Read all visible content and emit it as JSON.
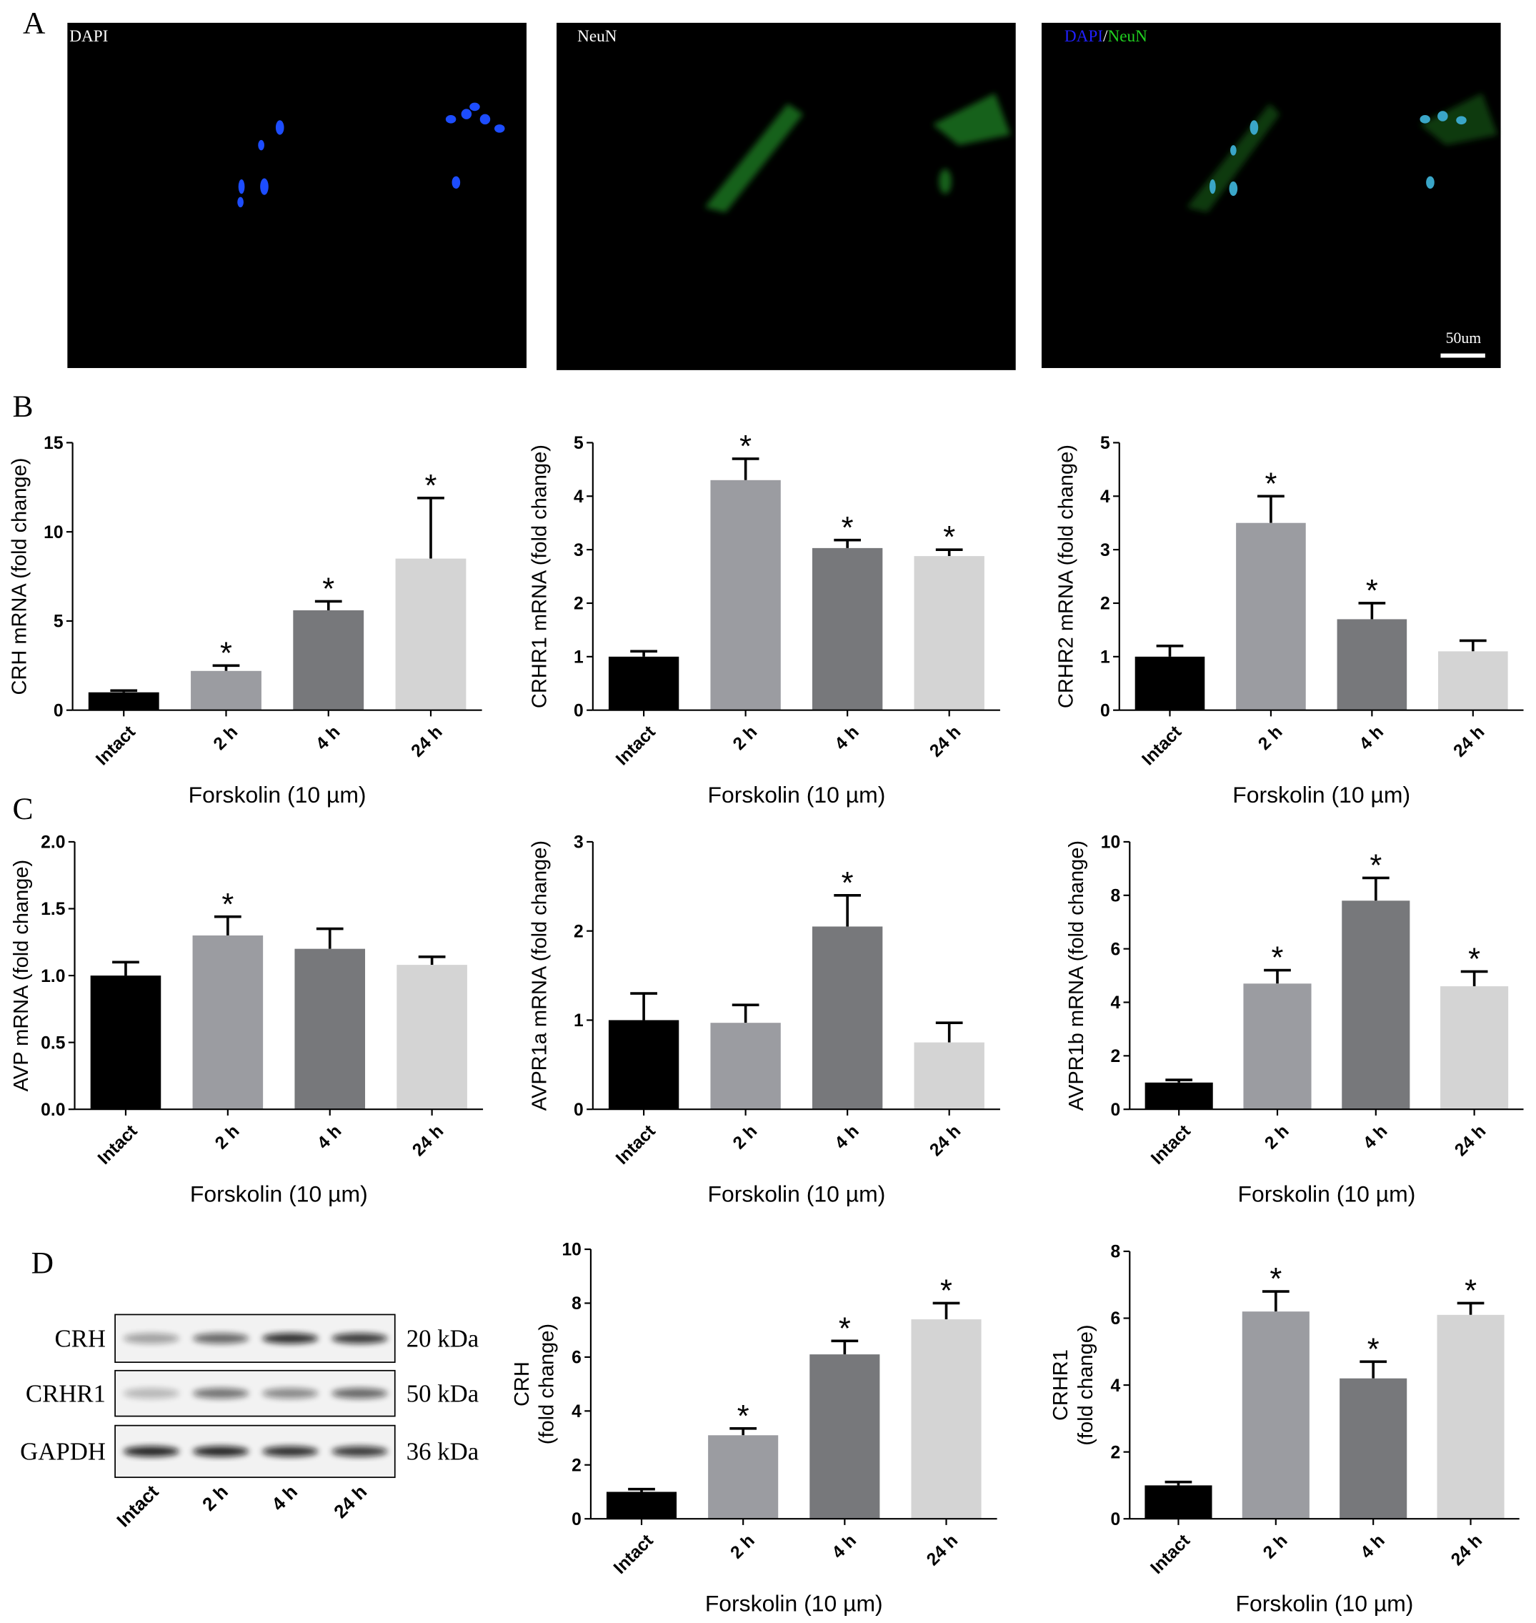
{
  "panel_labels": [
    "A",
    "B",
    "C",
    "D"
  ],
  "microscopy": {
    "panels": [
      {
        "label_parts": [
          {
            "text": "DAPI",
            "color": "#ffffff"
          }
        ]
      },
      {
        "label_parts": [
          {
            "text": "NeuN",
            "color": "#ffffff"
          }
        ]
      },
      {
        "label_parts": [
          {
            "text": "DAPI",
            "color": "#2020ff"
          },
          {
            "text": "/",
            "color": "#ffffff"
          },
          {
            "text": "NeuN",
            "color": "#20d020"
          }
        ]
      }
    ],
    "scale_bar": "50um"
  },
  "western_blot": {
    "rows": [
      {
        "label": "CRH",
        "size": "20 kDa"
      },
      {
        "label": "CRHR1",
        "size": "50 kDa"
      },
      {
        "label": "GAPDH",
        "size": "36 kDa"
      }
    ],
    "lanes": [
      "Intact",
      "2 h",
      "4 h",
      "24 h"
    ]
  },
  "chart_data": [
    {
      "type": "bar",
      "ylabel": "CRH mRNA (fold change)",
      "xlabel": "Forskolin (10 µm)",
      "categories": [
        "Intact",
        "2 h",
        "4 h",
        "24 h"
      ],
      "values": [
        1,
        2.2,
        5.6,
        8.5
      ],
      "errors": [
        0.1,
        0.3,
        0.5,
        3.4
      ],
      "annotations": [
        null,
        "*",
        "*",
        "*"
      ],
      "colors": [
        "#000000",
        "#9b9ca1",
        "#77787b",
        "#d4d4d4"
      ],
      "ylim": [
        0,
        15
      ],
      "yticks": [
        0,
        5,
        10,
        15
      ]
    },
    {
      "type": "bar",
      "ylabel": "CRHR1 mRNA (fold change)",
      "xlabel": "Forskolin (10 µm)",
      "categories": [
        "Intact",
        "2 h",
        "4 h",
        "24 h"
      ],
      "values": [
        1,
        4.3,
        3.03,
        2.88
      ],
      "errors": [
        0.1,
        0.4,
        0.15,
        0.12
      ],
      "annotations": [
        null,
        "*",
        "*",
        "*"
      ],
      "colors": [
        "#000000",
        "#9b9ca1",
        "#77787b",
        "#d4d4d4"
      ],
      "ylim": [
        0,
        5
      ],
      "yticks": [
        0,
        1,
        2,
        3,
        4,
        5
      ]
    },
    {
      "type": "bar",
      "ylabel": "CRHR2 mRNA (fold change)",
      "xlabel": "Forskolin (10 µm)",
      "categories": [
        "Intact",
        "2 h",
        "4 h",
        "24 h"
      ],
      "values": [
        1,
        3.5,
        1.7,
        1.1
      ],
      "errors": [
        0.2,
        0.5,
        0.3,
        0.2
      ],
      "annotations": [
        null,
        "*",
        "*",
        null
      ],
      "colors": [
        "#000000",
        "#9b9ca1",
        "#77787b",
        "#d4d4d4"
      ],
      "ylim": [
        0,
        5
      ],
      "yticks": [
        0,
        1,
        2,
        3,
        4,
        5
      ]
    },
    {
      "type": "bar",
      "ylabel": "AVP mRNA (fold change)",
      "xlabel": "Forskolin (10 µm)",
      "categories": [
        "Intact",
        "2 h",
        "4 h",
        "24 h"
      ],
      "values": [
        1,
        1.3,
        1.2,
        1.08
      ],
      "errors": [
        0.1,
        0.14,
        0.15,
        0.06
      ],
      "annotations": [
        null,
        "*",
        null,
        null
      ],
      "colors": [
        "#000000",
        "#9b9ca1",
        "#77787b",
        "#d4d4d4"
      ],
      "ylim": [
        0,
        2
      ],
      "yticks": [
        {
          "value": 0,
          "label": "0.0"
        },
        0.5,
        {
          "value": 1,
          "label": "1.0"
        },
        1.5,
        {
          "value": 2,
          "label": "2.0"
        }
      ]
    },
    {
      "type": "bar",
      "ylabel": "AVPR1a mRNA (fold change)",
      "xlabel": "Forskolin (10 µm)",
      "categories": [
        "Intact",
        "2 h",
        "4 h",
        "24 h"
      ],
      "values": [
        1,
        0.97,
        2.05,
        0.75
      ],
      "errors": [
        0.3,
        0.2,
        0.35,
        0.22
      ],
      "annotations": [
        null,
        null,
        "*",
        null
      ],
      "colors": [
        "#000000",
        "#9b9ca1",
        "#77787b",
        "#d4d4d4"
      ],
      "ylim": [
        0,
        3
      ],
      "yticks": [
        0,
        1,
        2,
        3
      ]
    },
    {
      "type": "bar",
      "ylabel": "AVPR1b mRNA (fold change)",
      "xlabel": "Forskolin (10 µm)",
      "categories": [
        "Intact",
        "2 h",
        "4 h",
        "24 h"
      ],
      "values": [
        1,
        4.7,
        7.8,
        4.6
      ],
      "errors": [
        0.1,
        0.5,
        0.85,
        0.55
      ],
      "annotations": [
        null,
        "*",
        "*",
        "*"
      ],
      "colors": [
        "#000000",
        "#9b9ca1",
        "#77787b",
        "#d4d4d4"
      ],
      "ylim": [
        0,
        10
      ],
      "yticks": [
        0,
        2,
        4,
        6,
        8,
        10
      ]
    },
    {
      "type": "bar",
      "ylabel": [
        "CRH",
        "(fold change)"
      ],
      "xlabel": "Forskolin (10 µm)",
      "categories": [
        "Intact",
        "2 h",
        "4 h",
        "24 h"
      ],
      "values": [
        1,
        3.1,
        6.1,
        7.4
      ],
      "errors": [
        0.1,
        0.25,
        0.5,
        0.6
      ],
      "annotations": [
        null,
        "*",
        "*",
        "*"
      ],
      "colors": [
        "#000000",
        "#9b9ca1",
        "#77787b",
        "#d4d4d4"
      ],
      "ylim": [
        0,
        10
      ],
      "yticks": [
        0,
        2,
        4,
        6,
        8,
        10
      ]
    },
    {
      "type": "bar",
      "ylabel": [
        "CRHR1",
        "(fold change)"
      ],
      "xlabel": "Forskolin (10 µm)",
      "categories": [
        "Intact",
        "2 h",
        "4 h",
        "24 h"
      ],
      "values": [
        1,
        6.2,
        4.2,
        6.1
      ],
      "errors": [
        0.1,
        0.6,
        0.5,
        0.35
      ],
      "annotations": [
        null,
        "*",
        "*",
        "*"
      ],
      "colors": [
        "#000000",
        "#9b9ca1",
        "#77787b",
        "#d4d4d4"
      ],
      "ylim": [
        0,
        8
      ],
      "yticks": [
        0,
        2,
        4,
        6,
        8
      ]
    }
  ]
}
